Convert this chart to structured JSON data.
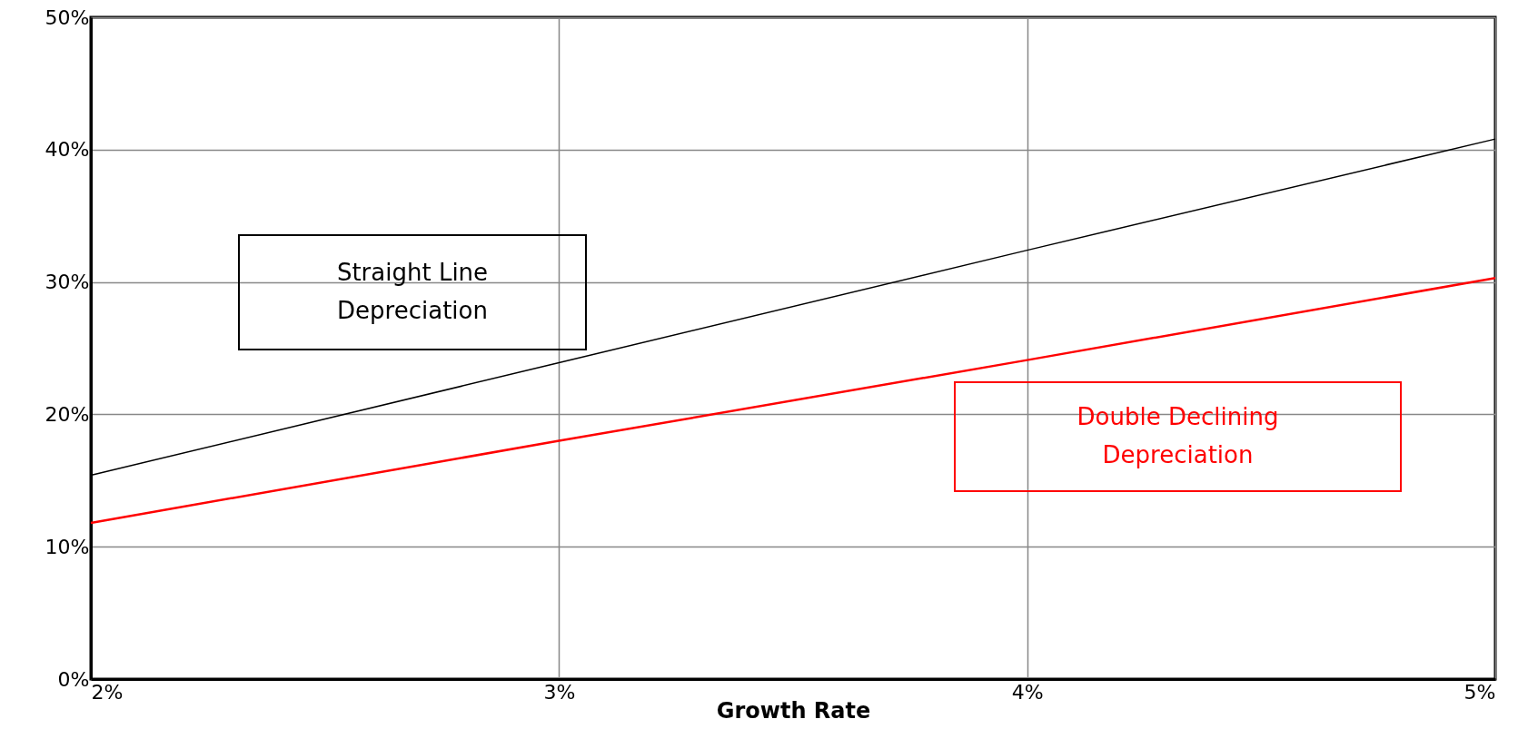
{
  "chart_data": {
    "type": "line",
    "xlabel": "Growth Rate",
    "x": [
      2,
      3,
      4,
      5
    ],
    "series": [
      {
        "name": "Straight Line Depreciation",
        "color": "#000000",
        "values": [
          15.4,
          23.9,
          32.4,
          40.8
        ]
      },
      {
        "name": "Double Declining Depreciation",
        "color": "#ff0000",
        "values": [
          11.8,
          18.0,
          24.1,
          30.3
        ]
      }
    ],
    "xlim": [
      2,
      5
    ],
    "xticks": [
      {
        "value": 2,
        "label": "2%"
      },
      {
        "value": 3,
        "label": "3%"
      },
      {
        "value": 4,
        "label": "4%"
      },
      {
        "value": 5,
        "label": "5%"
      }
    ],
    "ylim": [
      0,
      50
    ],
    "yticks": [
      {
        "value": 0,
        "label": "0%"
      },
      {
        "value": 10,
        "label": "10%"
      },
      {
        "value": 20,
        "label": "20%"
      },
      {
        "value": 30,
        "label": "30%"
      },
      {
        "value": 40,
        "label": "40%"
      },
      {
        "value": 50,
        "label": "50%"
      }
    ],
    "grid": true,
    "legend": false,
    "marker": "none",
    "line_style": "solid"
  }
}
